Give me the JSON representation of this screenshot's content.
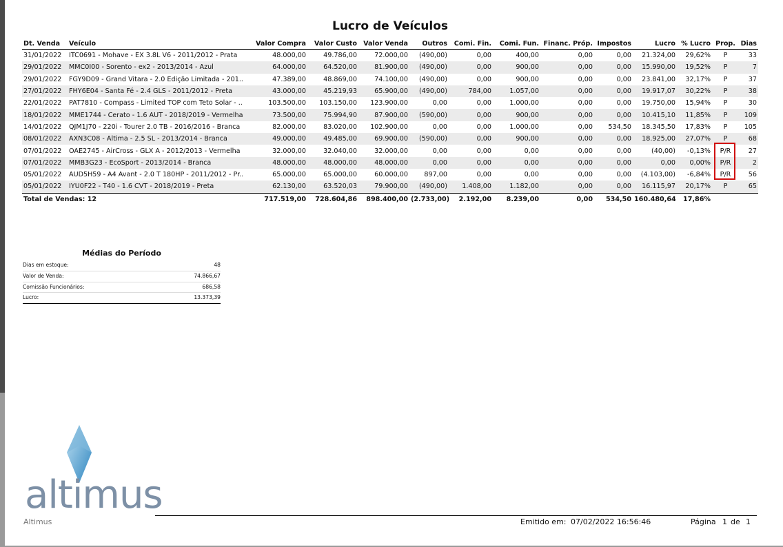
{
  "header": {
    "title": "Lucro de Veículos"
  },
  "table": {
    "headers": [
      "Dt. Venda",
      "Veículo",
      "Valor Compra",
      "Valor Custo",
      "Valor Venda",
      "Outros",
      "Comi. Fin.",
      "Comi. Fun.",
      "Financ. Próp.",
      "Impostos",
      "Lucro",
      "% Lucro",
      "Prop.",
      "Dias"
    ],
    "rows": [
      [
        "31/01/2022",
        "ITC0691 - Mohave - EX 3.8L V6 - 2011/2012 - Prata",
        "48.000,00",
        "49.786,00",
        "72.000,00",
        "(490,00)",
        "0,00",
        "400,00",
        "0,00",
        "0,00",
        "21.324,00",
        "29,62%",
        "P",
        "33"
      ],
      [
        "29/01/2022",
        "MMC0I00 - Sorento - ex2 - 2013/2014 - Azul",
        "64.000,00",
        "64.520,00",
        "81.900,00",
        "(490,00)",
        "0,00",
        "900,00",
        "0,00",
        "0,00",
        "15.990,00",
        "19,52%",
        "P",
        "7"
      ],
      [
        "29/01/2022",
        "FGY9D09 - Grand Vitara - 2.0 Edição Limitada - 201...",
        "47.389,00",
        "48.869,00",
        "74.100,00",
        "(490,00)",
        "0,00",
        "900,00",
        "0,00",
        "0,00",
        "23.841,00",
        "32,17%",
        "P",
        "37"
      ],
      [
        "27/01/2022",
        "FHY6E04 - Santa Fé - 2.4 GLS - 2011/2012 - Preta",
        "43.000,00",
        "45.219,93",
        "65.900,00",
        "(490,00)",
        "784,00",
        "1.057,00",
        "0,00",
        "0,00",
        "19.917,07",
        "30,22%",
        "P",
        "38"
      ],
      [
        "22/01/2022",
        "PAT7810 - Compass - Limited TOP com Teto Solar - ...",
        "103.500,00",
        "103.150,00",
        "123.900,00",
        "0,00",
        "0,00",
        "1.000,00",
        "0,00",
        "0,00",
        "19.750,00",
        "15,94%",
        "P",
        "30"
      ],
      [
        "18/01/2022",
        "MME1744 - Cerato - 1.6 AUT - 2018/2019 - Vermelha",
        "73.500,00",
        "75.994,90",
        "87.900,00",
        "(590,00)",
        "0,00",
        "900,00",
        "0,00",
        "0,00",
        "10.415,10",
        "11,85%",
        "P",
        "109"
      ],
      [
        "14/01/2022",
        "QJM1J70 - 220i - Tourer 2.0 TB - 2016/2016 - Branca",
        "82.000,00",
        "83.020,00",
        "102.900,00",
        "0,00",
        "0,00",
        "1.000,00",
        "0,00",
        "534,50",
        "18.345,50",
        "17,83%",
        "P",
        "105"
      ],
      [
        "08/01/2022",
        "AXN3C08 - Altima - 2.5 SL - 2013/2014 - Branca",
        "49.000,00",
        "49.485,00",
        "69.900,00",
        "(590,00)",
        "0,00",
        "900,00",
        "0,00",
        "0,00",
        "18.925,00",
        "27,07%",
        "P",
        "68"
      ],
      [
        "07/01/2022",
        "OAE2745 - AirCross - GLX A - 2012/2013 - Vermelha",
        "32.000,00",
        "32.040,00",
        "32.000,00",
        "0,00",
        "0,00",
        "0,00",
        "0,00",
        "0,00",
        "(40,00)",
        "-0,13%",
        "P/R",
        "27"
      ],
      [
        "07/01/2022",
        "MMB3G23 - EcoSport - 2013/2014 - Branca",
        "48.000,00",
        "48.000,00",
        "48.000,00",
        "0,00",
        "0,00",
        "0,00",
        "0,00",
        "0,00",
        "0,00",
        "0,00%",
        "P/R",
        "2"
      ],
      [
        "05/01/2022",
        "AUD5H59 - A4 Avant - 2.0 T 180HP - 2011/2012 - Pr...",
        "65.000,00",
        "65.000,00",
        "60.000,00",
        "897,00",
        "0,00",
        "0,00",
        "0,00",
        "0,00",
        "(4.103,00)",
        "-6,84%",
        "P/R",
        "56"
      ],
      [
        "05/01/2022",
        "IYU0F22 - T40 - 1.6 CVT - 2018/2019 - Preta",
        "62.130,00",
        "63.520,03",
        "79.900,00",
        "(490,00)",
        "1.408,00",
        "1.182,00",
        "0,00",
        "0,00",
        "16.115,97",
        "20,17%",
        "P",
        "65"
      ]
    ],
    "total": {
      "label": "Total de Vendas: 12",
      "values": [
        "717.519,00",
        "728.604,86",
        "898.400,00",
        "(2.733,00)",
        "2.192,00",
        "8.239,00",
        "0,00",
        "534,50",
        "160.480,64",
        "17,86%"
      ]
    }
  },
  "averages": {
    "title": "Médias do Período",
    "rows": [
      [
        "Dias em estoque:",
        "48"
      ],
      [
        "Valor de Venda:",
        "74.866,67"
      ],
      [
        "Comissão Funcionários:",
        "686,58"
      ],
      [
        "Lucro:",
        "13.373,39"
      ]
    ]
  },
  "logo": {
    "text": "altimus"
  },
  "footer": {
    "company": "Altimus",
    "issued_label": "Emitido em:",
    "issued_at": "07/02/2022 16:56:46",
    "page_label": "Página",
    "page": "1",
    "of": "de",
    "pages": "1"
  }
}
